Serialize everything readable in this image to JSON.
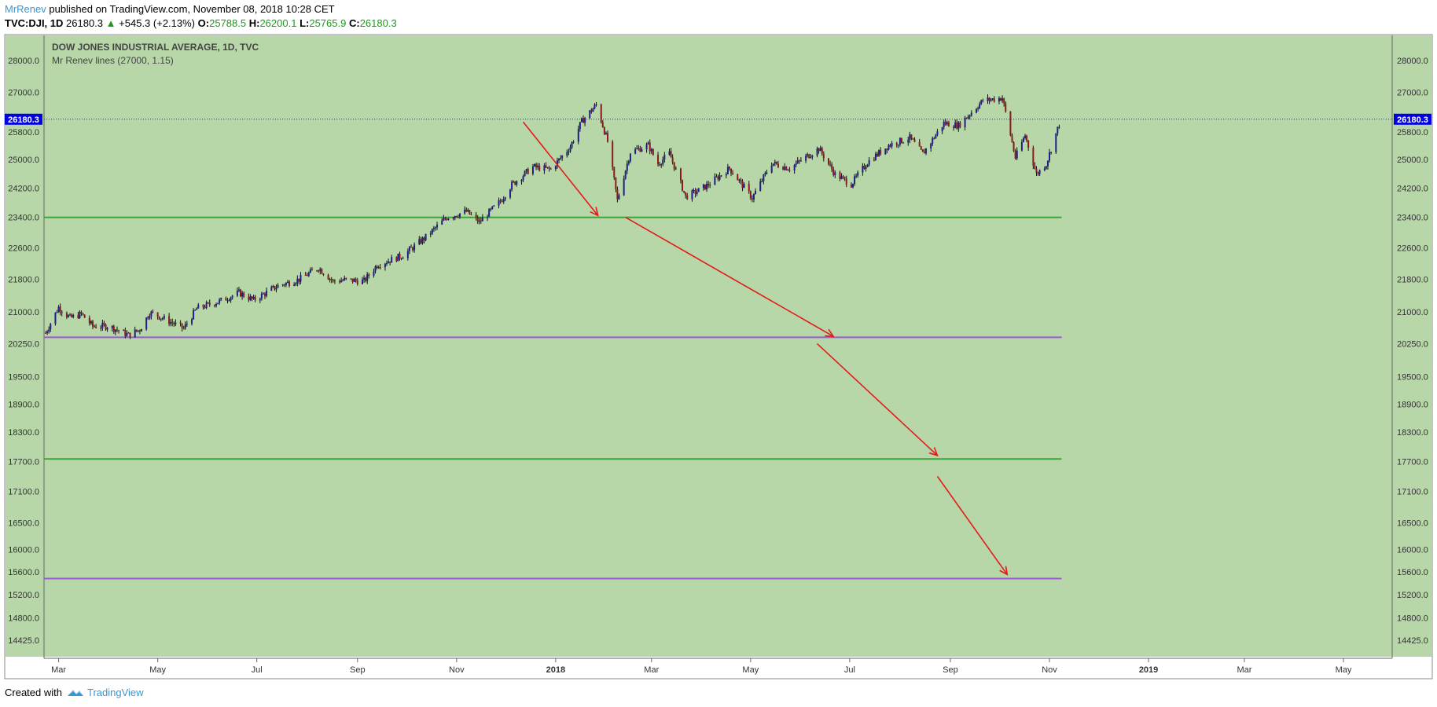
{
  "header": {
    "author": "MrRenev",
    "published": " published on TradingView.com, November 08, 2018 10:28 CET",
    "symbol": "TVC:DJI, 1D",
    "last": "26180.3",
    "change_arrow": "▲",
    "change": "+545.3 (+2.13%)",
    "o_label": "O:",
    "o_value": "25788.5",
    "h_label": "H:",
    "h_value": "26200.1",
    "l_label": "L:",
    "l_value": "25765.9",
    "c_label": "C:",
    "c_value": "26180.3"
  },
  "footer": {
    "created_with": "Created with",
    "brand": "TradingView",
    "brand_icon": "tradingview-logo-icon"
  },
  "chart_data": {
    "type": "candlestick",
    "title": "DOW JONES INDUSTRIAL AVERAGE, 1D, TVC",
    "subtitle": "Mr Renev lines (27000, 1.15)",
    "y_ticks": [
      28000,
      27000,
      25800,
      25000,
      24200,
      23400,
      22600,
      21800,
      21000,
      20250,
      19500,
      18900,
      18300,
      17700,
      17100,
      16500,
      16000,
      15600,
      15200,
      14800,
      14425
    ],
    "y_tick_labels": [
      "28000.0",
      "27000.0",
      "25800.0",
      "25000.0",
      "24200.0",
      "23400.0",
      "22600.0",
      "21800.0",
      "21000.0",
      "20250.0",
      "19500.0",
      "18900.0",
      "18300.0",
      "17700.0",
      "17100.0",
      "16500.0",
      "16000.0",
      "15600.0",
      "15200.0",
      "14800.0",
      "14425.0"
    ],
    "x_ticks": [
      "Mar",
      "May",
      "Jul",
      "Sep",
      "Nov",
      "2018",
      "Mar",
      "May",
      "Jul",
      "Sep",
      "Nov",
      "2019",
      "Mar",
      "May"
    ],
    "x_range": [
      "2017-02-20",
      "2019-05-31"
    ],
    "scale": "log",
    "last_price_label": "26180.3",
    "last_price": 26180.3,
    "horizontal_lines": [
      {
        "value": 23400,
        "color": "#3aa53a"
      },
      {
        "value": 20400,
        "color": "#9b59d6"
      },
      {
        "value": 17750,
        "color": "#3aa53a"
      },
      {
        "value": 15480,
        "color": "#9b59d6"
      }
    ],
    "arrows": [
      {
        "from": [
          "2017-12-12",
          26100
        ],
        "to": [
          "2018-01-27",
          23450
        ]
      },
      {
        "from": [
          "2018-02-13",
          23400
        ],
        "to": [
          "2018-06-21",
          20420
        ]
      },
      {
        "from": [
          "2018-06-11",
          20250
        ],
        "to": [
          "2018-08-24",
          17820
        ]
      },
      {
        "from": [
          "2018-08-24",
          17400
        ],
        "to": [
          "2018-10-06",
          15550
        ]
      }
    ],
    "series": [
      {
        "values": [
          [
            "2017-02-21",
            20500
          ],
          [
            "2017-03-01",
            21115
          ],
          [
            "2017-03-08",
            20855
          ],
          [
            "2017-03-15",
            20950
          ],
          [
            "2017-03-22",
            20660
          ],
          [
            "2017-04-01",
            20660
          ],
          [
            "2017-04-13",
            20453
          ],
          [
            "2017-04-20",
            20580
          ],
          [
            "2017-04-26",
            20980
          ],
          [
            "2017-05-01",
            20913
          ],
          [
            "2017-05-17",
            20606
          ],
          [
            "2017-05-25",
            21080
          ],
          [
            "2017-06-09",
            21272
          ],
          [
            "2017-06-20",
            21467
          ],
          [
            "2017-06-29",
            21287
          ],
          [
            "2017-07-14",
            21637
          ],
          [
            "2017-07-27",
            21797
          ],
          [
            "2017-08-08",
            22085
          ],
          [
            "2017-08-17",
            21750
          ],
          [
            "2017-08-24",
            21783
          ],
          [
            "2017-09-05",
            21753
          ],
          [
            "2017-09-13",
            22158
          ],
          [
            "2017-09-29",
            22405
          ],
          [
            "2017-10-12",
            22841
          ],
          [
            "2017-10-26",
            23400
          ],
          [
            "2017-11-07",
            23557
          ],
          [
            "2017-11-15",
            23271
          ],
          [
            "2017-11-28",
            23836
          ],
          [
            "2017-12-05",
            24290
          ],
          [
            "2017-12-18",
            24792
          ],
          [
            "2017-12-29",
            24719
          ],
          [
            "2018-01-10",
            25369
          ],
          [
            "2018-01-17",
            26115
          ],
          [
            "2018-01-26",
            26617
          ],
          [
            "2018-02-02",
            25520
          ],
          [
            "2018-02-08",
            23860
          ],
          [
            "2018-02-16",
            25220
          ],
          [
            "2018-02-27",
            25410
          ],
          [
            "2018-03-05",
            24875
          ],
          [
            "2018-03-12",
            25178
          ],
          [
            "2018-03-22",
            23958
          ],
          [
            "2018-03-29",
            24103
          ],
          [
            "2018-04-04",
            24264
          ],
          [
            "2018-04-18",
            24748
          ],
          [
            "2018-05-02",
            23925
          ],
          [
            "2018-05-14",
            24900
          ],
          [
            "2018-05-25",
            24753
          ],
          [
            "2018-06-12",
            25320
          ],
          [
            "2018-06-22",
            24580
          ],
          [
            "2018-07-02",
            24307
          ],
          [
            "2018-07-12",
            24924
          ],
          [
            "2018-07-25",
            25414
          ],
          [
            "2018-08-07",
            25629
          ],
          [
            "2018-08-15",
            25163
          ],
          [
            "2018-08-28",
            26064
          ],
          [
            "2018-09-06",
            25995
          ],
          [
            "2018-09-21",
            26743
          ],
          [
            "2018-10-03",
            26828
          ],
          [
            "2018-10-11",
            25052
          ],
          [
            "2018-10-17",
            25706
          ],
          [
            "2018-10-24",
            24583
          ],
          [
            "2018-10-30",
            24874
          ],
          [
            "2018-11-08",
            26180
          ]
        ]
      }
    ]
  },
  "colors": {
    "background": "#b7d7a8",
    "up_candle": "#1e1e8a",
    "down_candle": "#8b1a1a",
    "arrow": "#e31b1b",
    "price_line": "#2b2bcf",
    "price_label_bg": "#0000e0"
  }
}
